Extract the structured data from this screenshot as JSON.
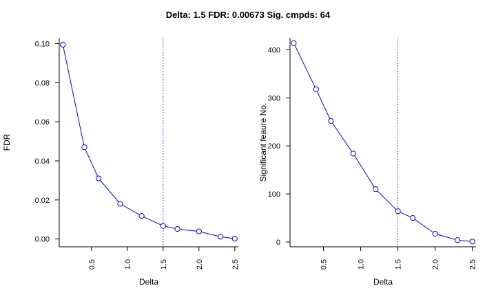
{
  "title": "Delta: 1.5  FDR: 0.00673 Sig. cmpds: 64",
  "colors": {
    "series": "#0000ff",
    "cutoff": "#a020f0",
    "axis": "#000000"
  },
  "chart_data": [
    {
      "type": "line",
      "xlabel": "Delta",
      "ylabel": "FDR",
      "xlim": [
        0.05,
        2.55
      ],
      "ylim": [
        -0.004,
        0.103
      ],
      "xticks": [
        "0.5",
        "1.0",
        "1.5",
        "2.0",
        "2.5"
      ],
      "yticks": [
        "0.00",
        "0.02",
        "0.04",
        "0.06",
        "0.08",
        "0.10"
      ],
      "cutoff_x": 1.5,
      "x": [
        0.1,
        0.4,
        0.6,
        0.9,
        1.2,
        1.5,
        1.7,
        2.0,
        2.3,
        2.5
      ],
      "y": [
        0.0995,
        0.047,
        0.031,
        0.018,
        0.0118,
        0.0067,
        0.0051,
        0.0039,
        0.0012,
        0.0002
      ]
    },
    {
      "type": "line",
      "xlabel": "Delta",
      "ylabel": "Significant feaure No.",
      "xlim": [
        0.05,
        2.55
      ],
      "ylim": [
        -10,
        425
      ],
      "xticks": [
        "0.5",
        "1.0",
        "1.5",
        "2.0",
        "2.5"
      ],
      "yticks": [
        "0",
        "100",
        "200",
        "300",
        "400"
      ],
      "cutoff_x": 1.5,
      "x": [
        0.1,
        0.4,
        0.6,
        0.9,
        1.2,
        1.5,
        1.7,
        2.0,
        2.3,
        2.5
      ],
      "y": [
        414,
        318,
        252,
        184,
        110,
        64,
        50,
        17,
        4,
        1
      ]
    }
  ]
}
